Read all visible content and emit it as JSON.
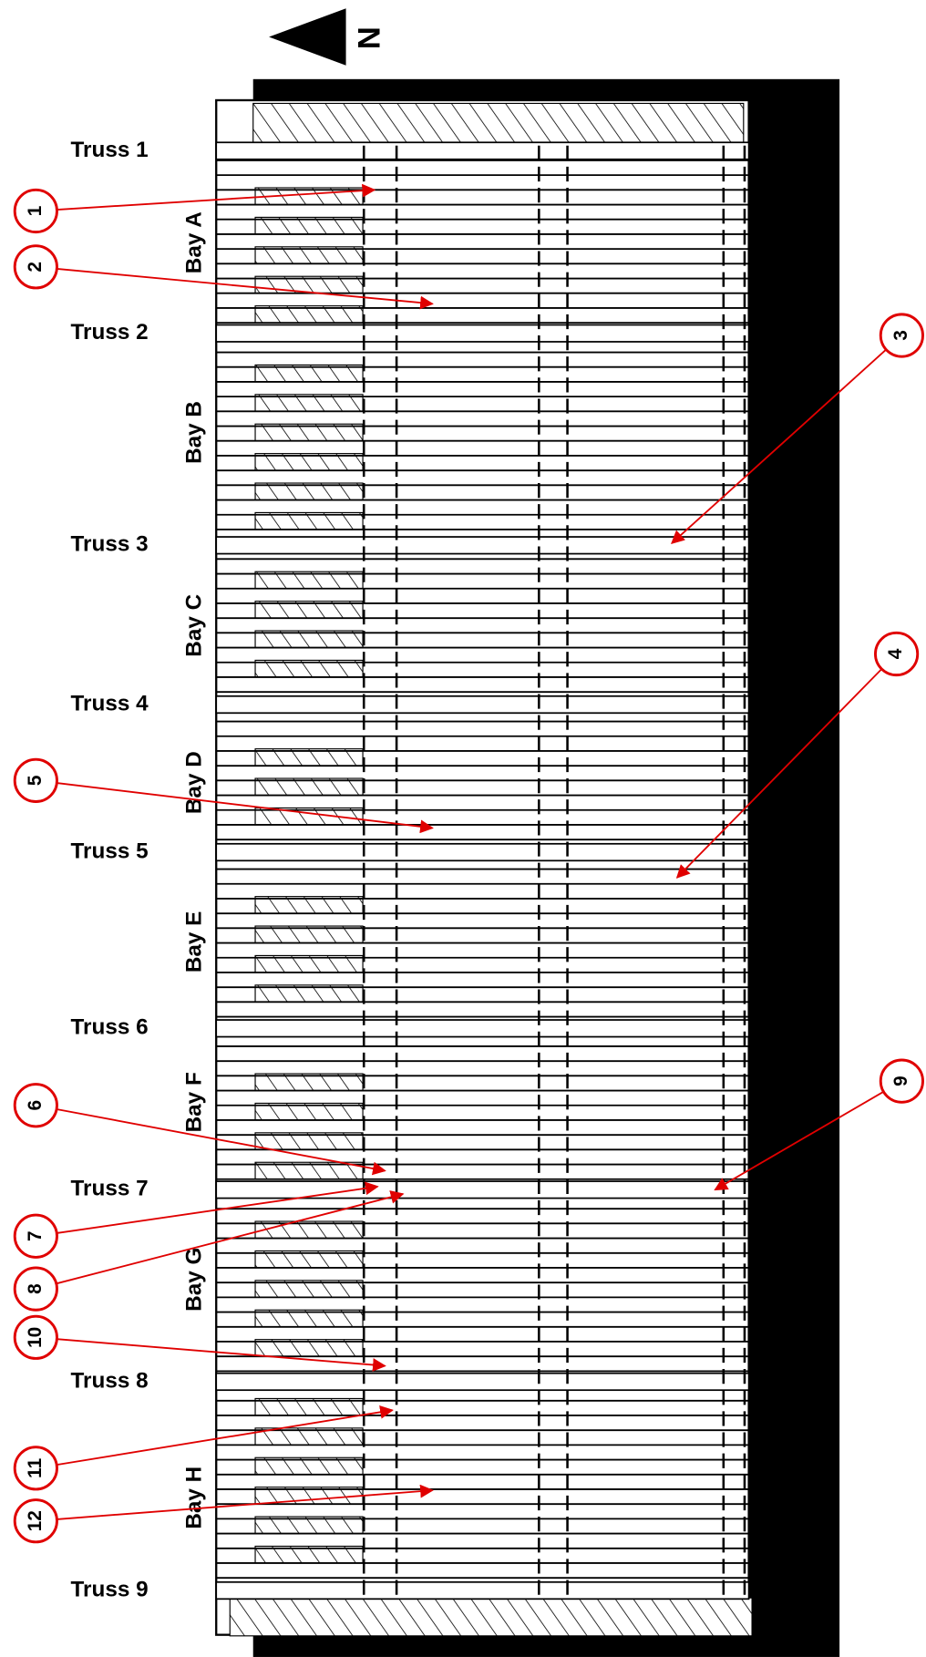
{
  "north": "N",
  "trusses": [
    "Truss 1",
    "Truss 2",
    "Truss 3",
    "Truss 4",
    "Truss 5",
    "Truss 6",
    "Truss 7",
    "Truss 8",
    "Truss 9"
  ],
  "bays": [
    "Bay A",
    "Bay B",
    "Bay C",
    "Bay D",
    "Bay E",
    "Bay F",
    "Bay G",
    "Bay H"
  ],
  "callouts": [
    "1",
    "2",
    "3",
    "4",
    "5",
    "6",
    "7",
    "8",
    "9",
    "10",
    "11",
    "12"
  ]
}
